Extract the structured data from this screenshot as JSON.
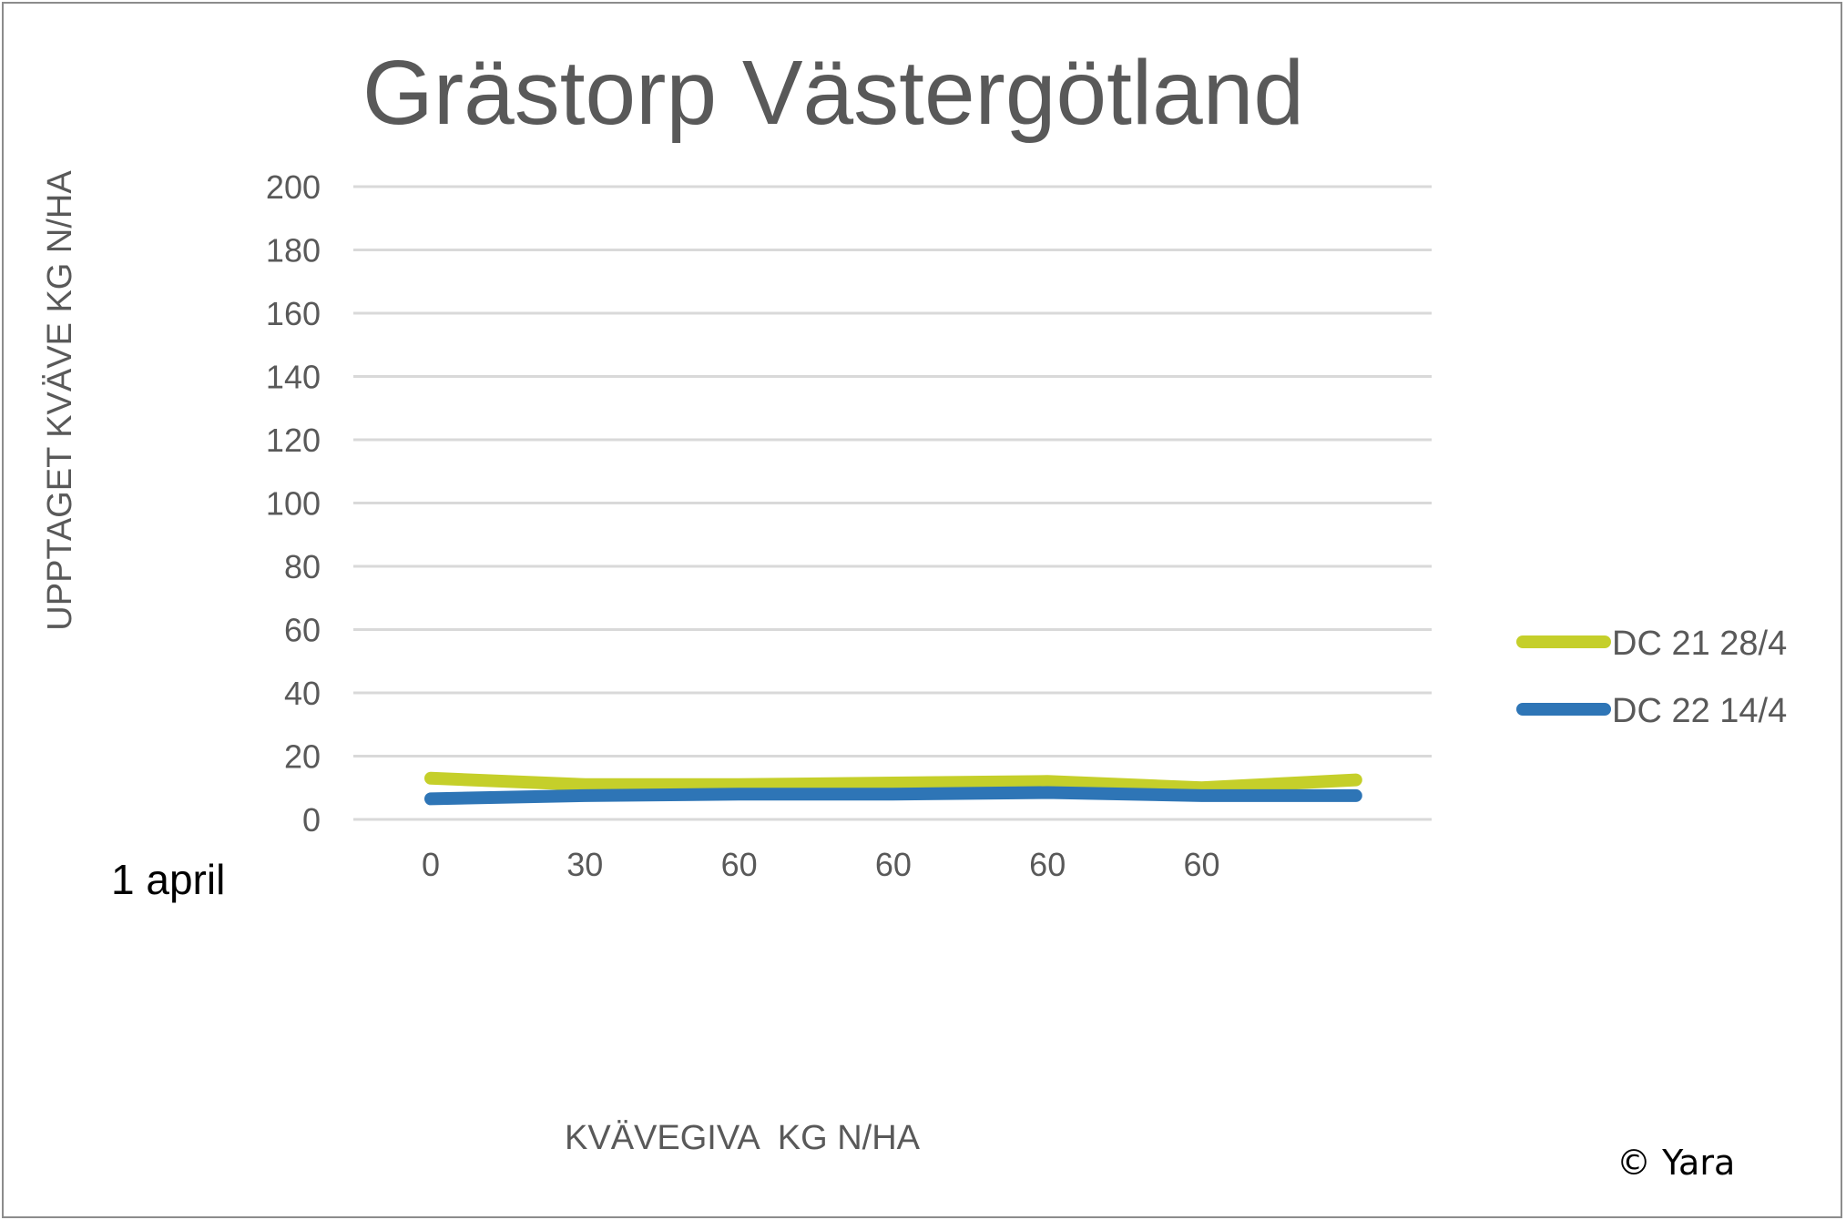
{
  "chart_data": {
    "type": "line",
    "title": "Grästorp Västergötland",
    "xlabel": "KVÄVEGIVA  KG N/HA",
    "ylabel": "UPPTAGET KVÄVE KG N/HA",
    "categories": [
      "0",
      "30",
      "60",
      "60",
      "60",
      "60",
      ""
    ],
    "ylim": [
      0,
      200
    ],
    "yticks": [
      "0",
      "20",
      "40",
      "60",
      "80",
      "100",
      "120",
      "140",
      "160",
      "180",
      "200"
    ],
    "grid": true,
    "legend_position": "right",
    "series": [
      {
        "name": "DC 21 28/4",
        "color": "#c5cf2a",
        "values": [
          13,
          11,
          11,
          11.5,
          12,
          10,
          12.5
        ]
      },
      {
        "name": "DC 22 14/4",
        "color": "#2e75b6",
        "values": [
          6.5,
          7.5,
          8,
          8,
          8.5,
          7.5,
          7.5
        ]
      }
    ],
    "annotations": [
      "1 april"
    ]
  },
  "footer": {
    "copyright": "© Yara"
  }
}
